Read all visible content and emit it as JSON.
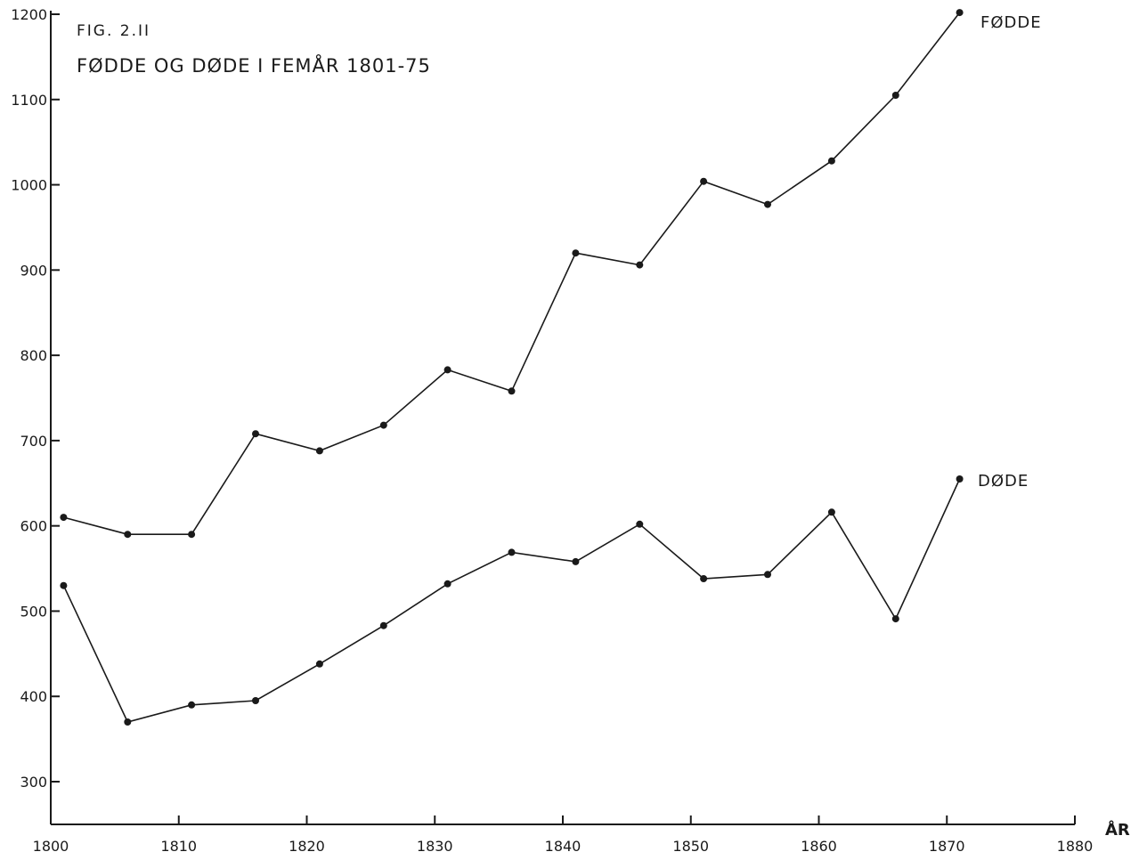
{
  "figure": {
    "label": "FIG. 2.II",
    "title": "FØDDE OG DØDE I FEMÅR  1801-75"
  },
  "chart_data": {
    "type": "line",
    "title": "FØDDE OG DØDE I FEMÅR 1801-75",
    "xlabel": "ÅR",
    "ylabel": "",
    "xlim": [
      1800,
      1880
    ],
    "ylim": [
      250,
      1200
    ],
    "x_ticks": [
      1800,
      1810,
      1820,
      1830,
      1840,
      1850,
      1860,
      1870,
      1880
    ],
    "y_ticks": [
      300,
      400,
      500,
      600,
      700,
      800,
      900,
      1000,
      1100,
      1200
    ],
    "grid": false,
    "legend": "labels at line ends",
    "series": [
      {
        "name": "FØDDE",
        "x": [
          1801,
          1806,
          1811,
          1816,
          1821,
          1826,
          1831,
          1836,
          1841,
          1846,
          1851,
          1856,
          1861,
          1866,
          1871
        ],
        "values": [
          610,
          590,
          590,
          708,
          688,
          718,
          783,
          758,
          920,
          906,
          1004,
          977,
          1028,
          1105,
          1202
        ]
      },
      {
        "name": "DØDE",
        "x": [
          1801,
          1806,
          1811,
          1816,
          1821,
          1826,
          1831,
          1836,
          1841,
          1846,
          1851,
          1856,
          1861,
          1866,
          1871
        ],
        "values": [
          530,
          370,
          390,
          395,
          438,
          483,
          532,
          569,
          558,
          602,
          538,
          543,
          616,
          491,
          655
        ]
      }
    ]
  },
  "colors": {
    "ink": "#1a1a1a",
    "paper": "#ffffff"
  }
}
